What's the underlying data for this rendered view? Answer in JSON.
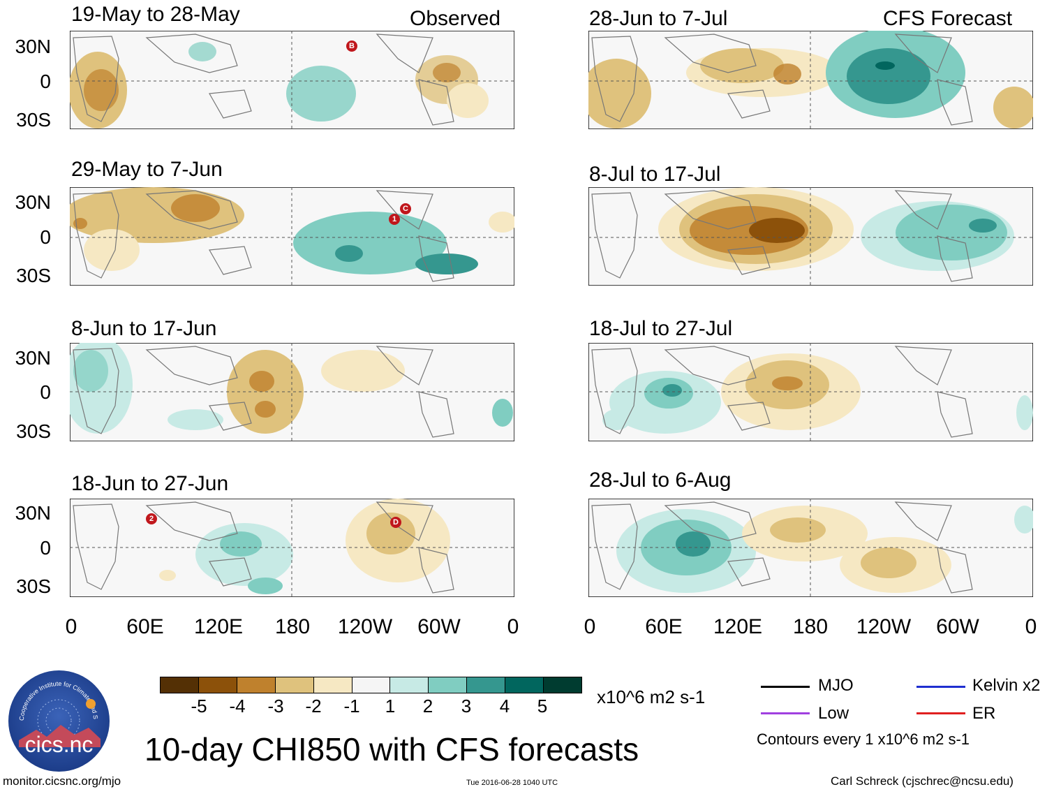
{
  "panels_left": [
    {
      "title": "19-May to 28-May",
      "tag": "Observed"
    },
    {
      "title": "29-May to 7-Jun",
      "tag": ""
    },
    {
      "title": "8-Jun to 17-Jun",
      "tag": ""
    },
    {
      "title": "18-Jun to 27-Jun",
      "tag": ""
    }
  ],
  "panels_right": [
    {
      "title": "28-Jun to 7-Jul",
      "tag": "CFS Forecast"
    },
    {
      "title": "8-Jul to 17-Jul",
      "tag": ""
    },
    {
      "title": "18-Jul to 27-Jul",
      "tag": ""
    },
    {
      "title": "28-Jul to 6-Aug",
      "tag": ""
    }
  ],
  "y_ticks": [
    "30N",
    "0",
    "30S"
  ],
  "x_ticks": [
    "0",
    "60E",
    "120E",
    "180",
    "120W",
    "60W",
    "0"
  ],
  "markers": [
    {
      "panel": "L1",
      "label": "B"
    },
    {
      "panel": "L2",
      "label": "1"
    },
    {
      "panel": "L2",
      "label": "C"
    },
    {
      "panel": "L4",
      "label": "2"
    },
    {
      "panel": "L4",
      "label": "D"
    }
  ],
  "colorbar": {
    "labels": [
      "-5",
      "-4",
      "-3",
      "-2",
      "-1",
      "1",
      "2",
      "3",
      "4",
      "5"
    ],
    "colors": [
      "#543005",
      "#8c510a",
      "#bf812d",
      "#dfc27d",
      "#f6e8c3",
      "#f5f5f5",
      "#c7eae5",
      "#80cdc1",
      "#35978f",
      "#01665e",
      "#003c30"
    ],
    "units": "x10^6 m2 s-1"
  },
  "main_title": "10-day CHI850 with CFS forecasts",
  "legend": {
    "items": [
      {
        "label": "MJO",
        "color": "#000000"
      },
      {
        "label": "Kelvin x2",
        "color": "#1f2fd0"
      },
      {
        "label": "Low",
        "color": "#a040e0"
      },
      {
        "label": "ER",
        "color": "#e02020"
      }
    ],
    "contour_note": "Contours every 1 x10^6 m2 s-1"
  },
  "logo_text": "cics.nc",
  "logo_ring_text": "Cooperative Institute for Climate and Satellites",
  "footer": {
    "left": "monitor.cicsnc.org/mjo",
    "center": "Tue 2016-06-28 1040 UTC",
    "right": "Carl Schreck (cjschrec@ncsu.edu)"
  }
}
